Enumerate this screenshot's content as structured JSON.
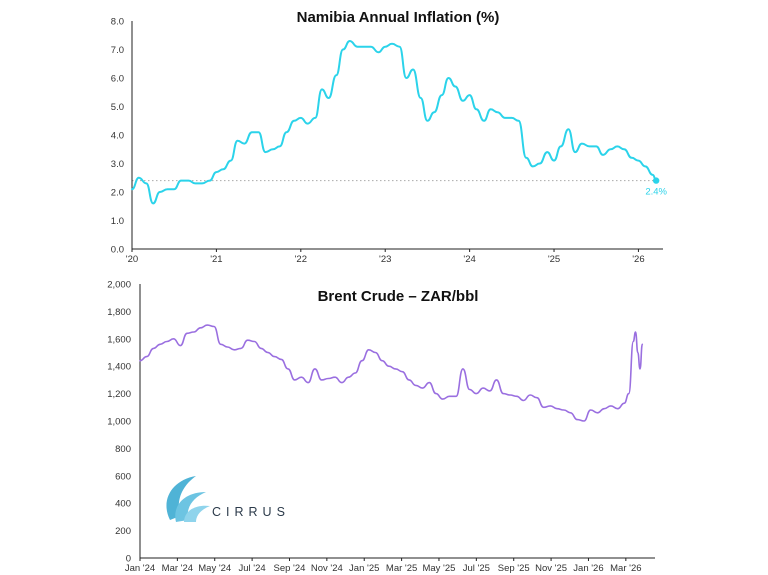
{
  "colors": {
    "inflation_line": "#2bd3ea",
    "crude_line": "#9a6fe0",
    "axis": "#222222",
    "reference": "#a9a9a9",
    "logo_mark": "#4fb3d6"
  },
  "logo": {
    "text": "CIRRUS",
    "icon": "cirrus-swoosh-icon"
  },
  "chart_data": [
    {
      "type": "line",
      "title": "Namibia Annual Inflation (%)",
      "xlabel": "",
      "ylabel": "",
      "x_range": [
        2020.0,
        2026.22
      ],
      "ylim": [
        0,
        8
      ],
      "y_ticks": [
        0,
        1,
        2,
        3,
        4,
        5,
        6,
        7,
        8
      ],
      "y_tick_labels": [
        "0.0",
        "1.0",
        "2.0",
        "3.0",
        "4.0",
        "5.0",
        "6.0",
        "7.0",
        "8.0"
      ],
      "x_ticks": [
        2020,
        2021,
        2022,
        2023,
        2024,
        2025,
        2026
      ],
      "x_tick_labels": [
        "'20",
        "'21",
        "'22",
        "'23",
        "'24",
        "'25",
        "'26"
      ],
      "grid": false,
      "reference_line": {
        "y": 2.4,
        "style": "dotted"
      },
      "callout": {
        "label": "2.4%",
        "x": 2026.21,
        "y": 2.4
      },
      "x": [
        2020.0,
        2020.08,
        2020.17,
        2020.25,
        2020.33,
        2020.42,
        2020.5,
        2020.58,
        2020.67,
        2020.75,
        2020.83,
        2020.92,
        2021.0,
        2021.08,
        2021.17,
        2021.25,
        2021.33,
        2021.42,
        2021.5,
        2021.58,
        2021.67,
        2021.75,
        2021.83,
        2021.92,
        2022.0,
        2022.08,
        2022.17,
        2022.25,
        2022.33,
        2022.42,
        2022.5,
        2022.58,
        2022.67,
        2022.75,
        2022.83,
        2022.92,
        2023.0,
        2023.08,
        2023.17,
        2023.25,
        2023.33,
        2023.42,
        2023.5,
        2023.58,
        2023.67,
        2023.75,
        2023.83,
        2023.92,
        2024.0,
        2024.08,
        2024.17,
        2024.25,
        2024.33,
        2024.42,
        2024.5,
        2024.58,
        2024.67,
        2024.75,
        2024.83,
        2024.92,
        2025.0,
        2025.08,
        2025.17,
        2025.25,
        2025.33,
        2025.42,
        2025.5,
        2025.58,
        2025.67,
        2025.75,
        2025.83,
        2025.92,
        2026.0,
        2026.08,
        2026.17,
        2026.21
      ],
      "values": [
        2.1,
        2.5,
        2.3,
        1.6,
        2.0,
        2.1,
        2.1,
        2.4,
        2.4,
        2.3,
        2.3,
        2.4,
        2.7,
        2.8,
        3.1,
        3.8,
        3.7,
        4.1,
        4.1,
        3.4,
        3.5,
        3.6,
        4.1,
        4.5,
        4.6,
        4.4,
        4.6,
        5.6,
        5.3,
        6.1,
        7.0,
        7.3,
        7.1,
        7.1,
        7.1,
        6.9,
        7.1,
        7.2,
        7.1,
        6.0,
        6.3,
        5.3,
        4.5,
        4.8,
        5.4,
        6.0,
        5.7,
        5.2,
        5.4,
        4.9,
        4.5,
        4.9,
        4.8,
        4.6,
        4.6,
        4.5,
        3.2,
        2.9,
        3.0,
        3.4,
        3.1,
        3.6,
        4.2,
        3.4,
        3.7,
        3.6,
        3.6,
        3.3,
        3.5,
        3.6,
        3.5,
        3.2,
        3.1,
        2.9,
        2.6,
        2.4
      ]
    },
    {
      "type": "line",
      "title": "Brent Crude – ZAR/bbl",
      "xlabel": "",
      "ylabel": "",
      "x_range": [
        2024.0,
        2026.27
      ],
      "ylim": [
        0,
        2000
      ],
      "y_ticks": [
        0,
        200,
        400,
        600,
        800,
        1000,
        1200,
        1400,
        1600,
        1800,
        2000
      ],
      "y_tick_labels": [
        "0",
        "200",
        "400",
        "600",
        "800",
        "1,000",
        "1,200",
        "1,400",
        "1,600",
        "1,800",
        "2,000"
      ],
      "x_ticks": [
        2024.0,
        2024.1667,
        2024.3333,
        2024.5,
        2024.6667,
        2024.8333,
        2025.0,
        2025.1667,
        2025.3333,
        2025.5,
        2025.6667,
        2025.8333,
        2026.0,
        2026.1667
      ],
      "x_tick_labels": [
        "Jan '24",
        "Mar '24",
        "May '24",
        "Jul '24",
        "Sep '24",
        "Nov '24",
        "Jan '25",
        "Mar '25",
        "May '25",
        "Jul '25",
        "Sep '25",
        "Nov '25",
        "Jan '26",
        "Mar '26"
      ],
      "grid": false,
      "x": [
        2024.0,
        2024.03,
        2024.06,
        2024.09,
        2024.12,
        2024.15,
        2024.18,
        2024.21,
        2024.24,
        2024.27,
        2024.3,
        2024.33,
        2024.36,
        2024.39,
        2024.42,
        2024.45,
        2024.48,
        2024.51,
        2024.54,
        2024.57,
        2024.6,
        2024.63,
        2024.66,
        2024.69,
        2024.72,
        2024.75,
        2024.78,
        2024.81,
        2024.84,
        2024.87,
        2024.9,
        2024.93,
        2024.96,
        2024.99,
        2025.02,
        2025.05,
        2025.08,
        2025.11,
        2025.14,
        2025.17,
        2025.2,
        2025.23,
        2025.26,
        2025.29,
        2025.32,
        2025.35,
        2025.38,
        2025.41,
        2025.44,
        2025.47,
        2025.5,
        2025.53,
        2025.56,
        2025.59,
        2025.62,
        2025.65,
        2025.68,
        2025.71,
        2025.74,
        2025.77,
        2025.8,
        2025.83,
        2025.86,
        2025.89,
        2025.92,
        2025.95,
        2025.98,
        2026.01,
        2026.04,
        2026.07,
        2026.1,
        2026.13,
        2026.16,
        2026.18,
        2026.2,
        2026.21,
        2026.22,
        2026.23,
        2026.24
      ],
      "values": [
        1440,
        1470,
        1530,
        1560,
        1580,
        1600,
        1550,
        1640,
        1650,
        1680,
        1700,
        1690,
        1560,
        1540,
        1520,
        1530,
        1590,
        1580,
        1530,
        1500,
        1470,
        1450,
        1380,
        1300,
        1320,
        1280,
        1380,
        1300,
        1310,
        1320,
        1280,
        1320,
        1350,
        1440,
        1520,
        1500,
        1440,
        1400,
        1380,
        1360,
        1300,
        1260,
        1240,
        1280,
        1200,
        1160,
        1180,
        1180,
        1380,
        1230,
        1200,
        1240,
        1220,
        1300,
        1200,
        1190,
        1180,
        1150,
        1190,
        1170,
        1100,
        1110,
        1090,
        1080,
        1060,
        1010,
        1000,
        1080,
        1060,
        1090,
        1110,
        1090,
        1130,
        1200,
        1580,
        1650,
        1500,
        1380,
        1560
      ]
    }
  ]
}
